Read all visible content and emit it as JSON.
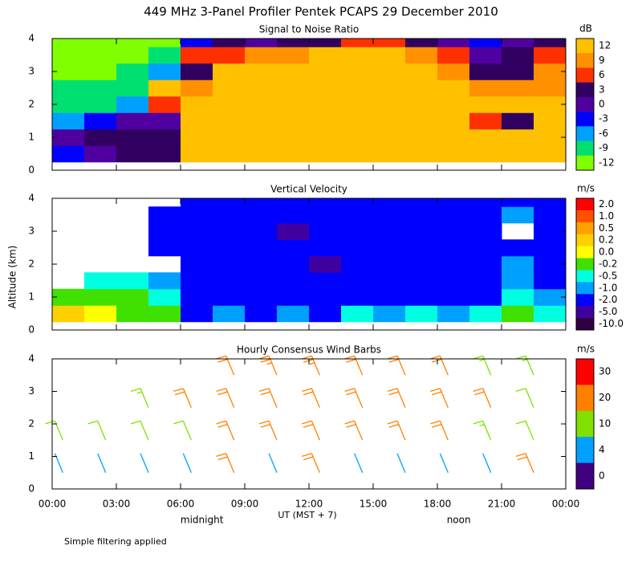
{
  "title": "449 MHz 3-Panel Profiler Pentek PCAPS 29 December 2010",
  "ylabel": "Altitude (km)",
  "xlabel": "UT  (MST + 7)",
  "footnote": "Simple filtering applied",
  "chart_data": [
    {
      "type": "heatmap",
      "title": "Signal to Noise Ratio",
      "xlim": [
        0,
        24
      ],
      "ylim": [
        0,
        4
      ],
      "yticks": [
        0,
        1,
        2,
        3,
        4
      ],
      "xticks": [
        0,
        3,
        6,
        9,
        12,
        15,
        18,
        21,
        24
      ],
      "x_edges": [
        0,
        1.5,
        3,
        4.5,
        6,
        7.5,
        9,
        10.5,
        12,
        13.5,
        15,
        16.5,
        18,
        19.5,
        21,
        22.5,
        24
      ],
      "y_edges": [
        0.25,
        0.75,
        1.25,
        1.75,
        2.25,
        2.75,
        3.25,
        3.75,
        4
      ],
      "values": [
        [
          -3,
          0,
          -6,
          -9,
          -9,
          -12,
          -12,
          -12
        ],
        [
          0,
          3,
          -3,
          -9,
          -9,
          -12,
          -12,
          -12
        ],
        [
          3,
          3,
          0,
          -6,
          -9,
          -9,
          -12,
          -12
        ],
        [
          3,
          3,
          0,
          6,
          12,
          -6,
          -9,
          -12
        ],
        [
          12,
          12,
          12,
          12,
          9,
          3,
          6,
          -3
        ],
        [
          12,
          12,
          12,
          12,
          12,
          12,
          6,
          3
        ],
        [
          12,
          12,
          12,
          12,
          12,
          12,
          9,
          0
        ],
        [
          12,
          12,
          12,
          12,
          12,
          12,
          9,
          3
        ],
        [
          12,
          12,
          12,
          12,
          12,
          12,
          12,
          3
        ],
        [
          12,
          12,
          12,
          12,
          12,
          12,
          12,
          6
        ],
        [
          12,
          12,
          12,
          12,
          12,
          12,
          12,
          6
        ],
        [
          12,
          12,
          12,
          12,
          12,
          12,
          9,
          3
        ],
        [
          12,
          12,
          12,
          12,
          12,
          9,
          6,
          0
        ],
        [
          12,
          12,
          6,
          12,
          9,
          3,
          0,
          -3
        ],
        [
          12,
          12,
          3,
          12,
          9,
          3,
          3,
          0
        ],
        [
          12,
          12,
          12,
          12,
          9,
          9,
          6,
          3
        ]
      ],
      "colorbar": {
        "unit": "dB",
        "ticks": [
          12,
          9,
          6,
          3,
          0,
          -3,
          -6,
          -9,
          -12
        ],
        "colors": [
          "#ffc000",
          "#ff9000",
          "#ff3000",
          "#300060",
          "#5000a0",
          "#0000ff",
          "#00a0ff",
          "#00e070",
          "#80ff00"
        ]
      }
    },
    {
      "type": "heatmap",
      "title": "Vertical Velocity",
      "xlim": [
        0,
        24
      ],
      "ylim": [
        0,
        4
      ],
      "yticks": [
        0,
        1,
        2,
        3,
        4
      ],
      "xticks": [
        0,
        3,
        6,
        9,
        12,
        15,
        18,
        21,
        24
      ],
      "x_edges": [
        0,
        1.5,
        3,
        4.5,
        6,
        7.5,
        9,
        10.5,
        12,
        13.5,
        15,
        16.5,
        18,
        19.5,
        21,
        22.5,
        24
      ],
      "y_edges": [
        0.25,
        0.75,
        1.25,
        1.75,
        2.25,
        2.75,
        3.25,
        3.75,
        4
      ],
      "values": [
        [
          0.2,
          -0.2,
          null,
          null,
          null,
          null,
          null,
          null
        ],
        [
          0,
          -0.2,
          -0.5,
          null,
          null,
          null,
          null,
          null
        ],
        [
          -0.2,
          -0.2,
          -0.5,
          null,
          null,
          null,
          null,
          null
        ],
        [
          -0.2,
          -0.5,
          -1,
          null,
          -2,
          -2,
          -2,
          null
        ],
        [
          -2,
          -2,
          -2,
          -2,
          -2,
          -2,
          -2,
          -2
        ],
        [
          -1,
          -2,
          -2,
          -2,
          -2,
          -2,
          -2,
          -2
        ],
        [
          -2,
          -2,
          -2,
          -2,
          -2,
          -2,
          -2,
          -2
        ],
        [
          -1,
          -2,
          -2,
          -2,
          -2,
          -5,
          -2,
          -2
        ],
        [
          -2,
          -2,
          -2,
          -5,
          -2,
          -2,
          -2,
          -2
        ],
        [
          -0.5,
          -2,
          -2,
          -2,
          -2,
          -2,
          -2,
          -2
        ],
        [
          -1,
          -2,
          -2,
          -2,
          -2,
          -2,
          -2,
          -2
        ],
        [
          -0.5,
          -2,
          -2,
          -2,
          -2,
          -2,
          -2,
          -2
        ],
        [
          -1,
          -2,
          -2,
          -2,
          -2,
          -2,
          -2,
          -2
        ],
        [
          -0.5,
          -2,
          -2,
          -2,
          -2,
          -2,
          -2,
          -2
        ],
        [
          -0.2,
          -0.5,
          -1,
          -1,
          -2,
          null,
          -1,
          -2
        ],
        [
          -0.5,
          -1,
          -2,
          -2,
          -2,
          -2,
          -2,
          -2
        ]
      ],
      "colorbar": {
        "unit": "m/s",
        "ticks": [
          {
            "value": 2,
            "label": "2.0"
          },
          {
            "value": 1,
            "label": "1.0"
          },
          0.5,
          0.2,
          {
            "value": 0,
            "label": "0.0"
          },
          -0.2,
          -0.5,
          {
            "value": -1,
            "label": "-1.0"
          },
          {
            "value": -2,
            "label": "-2.0"
          },
          {
            "value": -5,
            "label": "-5.0"
          },
          {
            "value": -10,
            "label": "-10.0"
          }
        ],
        "colors": [
          "#ff0000",
          "#ff5000",
          "#ffa000",
          "#ffd000",
          "#ffff00",
          "#40e000",
          "#00ffe0",
          "#00a0ff",
          "#0000ff",
          "#4000a0",
          "#300040"
        ]
      }
    },
    {
      "type": "barbs",
      "title": "Hourly Consensus Wind Barbs",
      "xlim": [
        0,
        24
      ],
      "ylim": [
        0,
        4
      ],
      "yticks": [
        0,
        1,
        2,
        3,
        4
      ],
      "xticks": [
        {
          "value": 0,
          "label": "00:00"
        },
        {
          "value": 3,
          "label": "03:00"
        },
        {
          "value": 6,
          "label": "06:00"
        },
        {
          "value": 9,
          "label": "09:00"
        },
        {
          "value": 12,
          "label": "12:00"
        },
        {
          "value": 15,
          "label": "15:00"
        },
        {
          "value": 18,
          "label": "18:00"
        },
        {
          "value": 21,
          "label": "21:00"
        },
        {
          "value": 24,
          "label": "00:00"
        }
      ],
      "x": [
        0.5,
        2.5,
        4.5,
        6.5,
        8.5,
        10.5,
        12.5,
        14.5,
        16.5,
        18.5,
        20.5,
        22.5
      ],
      "heights": [
        0.5,
        1.5,
        2.5,
        3.5
      ],
      "values": [
        [
          4,
          10,
          null,
          null
        ],
        [
          4,
          10,
          null,
          null
        ],
        [
          4,
          10,
          15,
          null
        ],
        [
          4,
          10,
          20,
          null
        ],
        [
          20,
          20,
          20,
          20
        ],
        [
          4,
          20,
          20,
          25
        ],
        [
          20,
          20,
          20,
          25
        ],
        [
          4,
          20,
          20,
          20
        ],
        [
          4,
          20,
          20,
          20
        ],
        [
          4,
          20,
          20,
          20
        ],
        [
          4,
          15,
          20,
          15
        ],
        [
          20,
          10,
          10,
          15
        ]
      ],
      "annotations": [
        {
          "text": "midnight",
          "x": 7
        },
        {
          "text": "noon",
          "x": 19
        }
      ],
      "colorbar": {
        "unit": "m/s",
        "ticks": [
          30,
          20,
          10,
          4,
          0
        ],
        "colors": [
          "#ff0000",
          "#ff8000",
          "#80e000",
          "#00a0ff",
          "#400080"
        ]
      }
    }
  ]
}
